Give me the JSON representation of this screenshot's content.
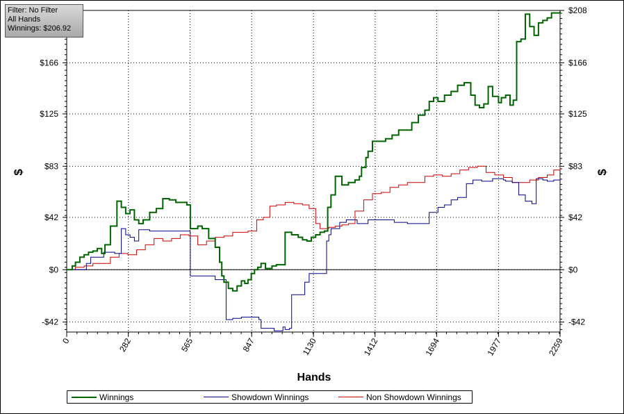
{
  "info_box": {
    "filter": "Filter: No Filter",
    "hands": "All Hands",
    "winnings": "Winnings: $206.92"
  },
  "chart_data": {
    "type": "line",
    "xlabel": "Hands",
    "ylabel_left": "$",
    "ylabel_right": "$",
    "xlim": [
      0,
      2259
    ],
    "ylim": [
      -50,
      208
    ],
    "x_ticks": [
      0,
      282,
      565,
      847,
      1130,
      1412,
      1694,
      1977,
      2259
    ],
    "x_tick_labels": [
      "0",
      "282",
      "565",
      "847",
      "1130",
      "1412",
      "1694",
      "1977",
      "2259"
    ],
    "y_ticks": [
      -42,
      0,
      42,
      83,
      125,
      166,
      208
    ],
    "y_tick_labels": [
      "-$42",
      "$0",
      "$42",
      "$83",
      "$125",
      "$166",
      "$208"
    ],
    "grid": true,
    "legend_position": "bottom",
    "series": [
      {
        "name": "Winnings",
        "color": "#006400",
        "points": [
          [
            0,
            0
          ],
          [
            25,
            3
          ],
          [
            40,
            6
          ],
          [
            60,
            10
          ],
          [
            80,
            12
          ],
          [
            100,
            14
          ],
          [
            120,
            15
          ],
          [
            140,
            17
          ],
          [
            160,
            13
          ],
          [
            175,
            20
          ],
          [
            200,
            35
          ],
          [
            230,
            55
          ],
          [
            250,
            50
          ],
          [
            270,
            45
          ],
          [
            290,
            48
          ],
          [
            310,
            40
          ],
          [
            330,
            37
          ],
          [
            350,
            40
          ],
          [
            380,
            46
          ],
          [
            410,
            49
          ],
          [
            440,
            57
          ],
          [
            470,
            56
          ],
          [
            500,
            54
          ],
          [
            520,
            54
          ],
          [
            550,
            52
          ],
          [
            565,
            52
          ],
          [
            566,
            33
          ],
          [
            600,
            35
          ],
          [
            620,
            33
          ],
          [
            650,
            25
          ],
          [
            680,
            18
          ],
          [
            700,
            6
          ],
          [
            710,
            -5
          ],
          [
            720,
            -10
          ],
          [
            740,
            -15
          ],
          [
            760,
            -17
          ],
          [
            780,
            -13
          ],
          [
            800,
            -9
          ],
          [
            815,
            -11
          ],
          [
            830,
            -8
          ],
          [
            845,
            -3
          ],
          [
            860,
            0
          ],
          [
            875,
            2
          ],
          [
            890,
            5
          ],
          [
            910,
            1
          ],
          [
            930,
            1
          ],
          [
            940,
            3
          ],
          [
            960,
            4
          ],
          [
            980,
            4
          ],
          [
            1000,
            30
          ],
          [
            1030,
            28
          ],
          [
            1060,
            26
          ],
          [
            1080,
            24
          ],
          [
            1100,
            23
          ],
          [
            1120,
            26
          ],
          [
            1140,
            28
          ],
          [
            1160,
            30
          ],
          [
            1180,
            31
          ],
          [
            1195,
            50
          ],
          [
            1210,
            60
          ],
          [
            1230,
            75
          ],
          [
            1260,
            68
          ],
          [
            1290,
            70
          ],
          [
            1320,
            72
          ],
          [
            1340,
            75
          ],
          [
            1350,
            82
          ],
          [
            1370,
            90
          ],
          [
            1380,
            95
          ],
          [
            1400,
            103
          ],
          [
            1430,
            103
          ],
          [
            1460,
            105
          ],
          [
            1490,
            108
          ],
          [
            1520,
            112
          ],
          [
            1550,
            112
          ],
          [
            1580,
            118
          ],
          [
            1610,
            124
          ],
          [
            1640,
            128
          ],
          [
            1660,
            135
          ],
          [
            1680,
            138
          ],
          [
            1700,
            135
          ],
          [
            1730,
            140
          ],
          [
            1760,
            143
          ],
          [
            1790,
            148
          ],
          [
            1820,
            150
          ],
          [
            1850,
            140
          ],
          [
            1870,
            132
          ],
          [
            1890,
            130
          ],
          [
            1910,
            133
          ],
          [
            1930,
            147
          ],
          [
            1950,
            139
          ],
          [
            1977,
            134
          ],
          [
            1990,
            138
          ],
          [
            2010,
            140
          ],
          [
            2030,
            132
          ],
          [
            2045,
            136
          ],
          [
            2060,
            183
          ],
          [
            2080,
            185
          ],
          [
            2100,
            205
          ],
          [
            2120,
            195
          ],
          [
            2140,
            188
          ],
          [
            2160,
            198
          ],
          [
            2180,
            200
          ],
          [
            2200,
            202
          ],
          [
            2220,
            206
          ],
          [
            2259,
            207
          ]
        ]
      },
      {
        "name": "Showdown Winnings",
        "color": "#00008b",
        "points": [
          [
            0,
            0
          ],
          [
            80,
            0
          ],
          [
            90,
            5
          ],
          [
            100,
            5
          ],
          [
            110,
            10
          ],
          [
            160,
            10
          ],
          [
            170,
            14
          ],
          [
            200,
            14
          ],
          [
            220,
            13
          ],
          [
            240,
            13
          ],
          [
            250,
            33
          ],
          [
            270,
            28
          ],
          [
            290,
            26
          ],
          [
            310,
            23
          ],
          [
            330,
            32
          ],
          [
            350,
            32
          ],
          [
            380,
            31
          ],
          [
            420,
            31
          ],
          [
            460,
            31
          ],
          [
            500,
            31
          ],
          [
            565,
            30
          ],
          [
            566,
            -5
          ],
          [
            620,
            -5
          ],
          [
            680,
            -8
          ],
          [
            720,
            -8
          ],
          [
            730,
            -40
          ],
          [
            760,
            -39
          ],
          [
            800,
            -38
          ],
          [
            840,
            -38
          ],
          [
            880,
            -40
          ],
          [
            890,
            -47
          ],
          [
            950,
            -49
          ],
          [
            990,
            -46
          ],
          [
            1000,
            -48
          ],
          [
            1020,
            -47
          ],
          [
            1030,
            -20
          ],
          [
            1060,
            -20
          ],
          [
            1090,
            -10
          ],
          [
            1110,
            -3
          ],
          [
            1180,
            -3
          ],
          [
            1190,
            23
          ],
          [
            1200,
            28
          ],
          [
            1210,
            33
          ],
          [
            1230,
            33
          ],
          [
            1250,
            38
          ],
          [
            1280,
            40
          ],
          [
            1330,
            37
          ],
          [
            1380,
            40
          ],
          [
            1430,
            40
          ],
          [
            1500,
            38
          ],
          [
            1560,
            37
          ],
          [
            1620,
            37
          ],
          [
            1660,
            46
          ],
          [
            1700,
            50
          ],
          [
            1730,
            52
          ],
          [
            1760,
            56
          ],
          [
            1790,
            58
          ],
          [
            1830,
            69
          ],
          [
            1860,
            72
          ],
          [
            1900,
            71
          ],
          [
            1950,
            73
          ],
          [
            2000,
            72
          ],
          [
            2010,
            71
          ],
          [
            2040,
            70
          ],
          [
            2070,
            60
          ],
          [
            2100,
            55
          ],
          [
            2130,
            53
          ],
          [
            2150,
            73
          ],
          [
            2180,
            72
          ],
          [
            2200,
            71
          ],
          [
            2230,
            72
          ],
          [
            2259,
            73
          ]
        ]
      },
      {
        "name": "Non Showdown Winnings",
        "color": "#cc0000",
        "points": [
          [
            0,
            0
          ],
          [
            40,
            2
          ],
          [
            80,
            3
          ],
          [
            120,
            5
          ],
          [
            160,
            5
          ],
          [
            200,
            10
          ],
          [
            240,
            13
          ],
          [
            280,
            12
          ],
          [
            320,
            16
          ],
          [
            360,
            20
          ],
          [
            400,
            25
          ],
          [
            440,
            23
          ],
          [
            480,
            25
          ],
          [
            520,
            28
          ],
          [
            560,
            27
          ],
          [
            600,
            20
          ],
          [
            640,
            23
          ],
          [
            680,
            26
          ],
          [
            720,
            27
          ],
          [
            760,
            30
          ],
          [
            800,
            30
          ],
          [
            830,
            31
          ],
          [
            870,
            40
          ],
          [
            900,
            42
          ],
          [
            930,
            51
          ],
          [
            960,
            52
          ],
          [
            1000,
            54
          ],
          [
            1040,
            53
          ],
          [
            1080,
            52
          ],
          [
            1110,
            49
          ],
          [
            1140,
            37
          ],
          [
            1160,
            33
          ],
          [
            1180,
            33
          ],
          [
            1200,
            34
          ],
          [
            1230,
            35
          ],
          [
            1260,
            36
          ],
          [
            1290,
            37
          ],
          [
            1320,
            47
          ],
          [
            1360,
            56
          ],
          [
            1400,
            61
          ],
          [
            1440,
            62
          ],
          [
            1480,
            66
          ],
          [
            1520,
            68
          ],
          [
            1560,
            70
          ],
          [
            1600,
            70
          ],
          [
            1640,
            75
          ],
          [
            1680,
            76
          ],
          [
            1720,
            75
          ],
          [
            1760,
            77
          ],
          [
            1800,
            80
          ],
          [
            1840,
            82
          ],
          [
            1880,
            83
          ],
          [
            1920,
            78
          ],
          [
            1960,
            76
          ],
          [
            2000,
            74
          ],
          [
            2040,
            70
          ],
          [
            2080,
            70
          ],
          [
            2120,
            72
          ],
          [
            2160,
            74
          ],
          [
            2200,
            76
          ],
          [
            2230,
            80
          ],
          [
            2259,
            83
          ]
        ]
      }
    ]
  }
}
